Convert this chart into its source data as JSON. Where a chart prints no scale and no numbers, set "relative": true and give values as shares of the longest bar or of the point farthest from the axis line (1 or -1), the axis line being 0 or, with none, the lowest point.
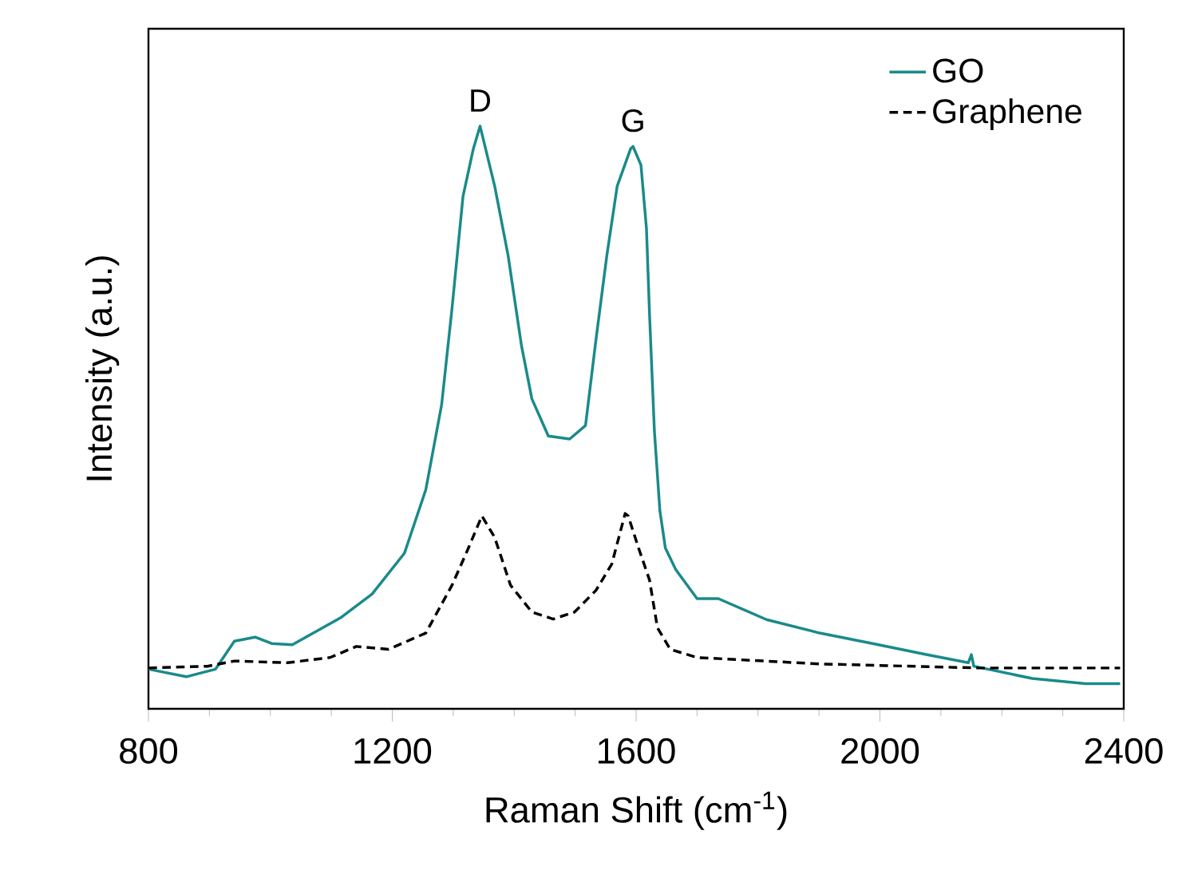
{
  "chart_data": {
    "type": "line",
    "relative": true,
    "xlabel": "Raman Shift (cm$^{-1}$)",
    "ylabel": "Intensity (a.u.)",
    "xlim": [
      800,
      2400
    ],
    "xticks": [
      800,
      1200,
      1600,
      2000,
      2400
    ],
    "legend": "top right",
    "grid": false,
    "annotations": [
      {
        "text": "D",
        "x": 1344,
        "y": 1.0
      },
      {
        "text": "G",
        "x": 1595,
        "y": 0.965
      }
    ],
    "series": [
      {
        "name": "GO",
        "color": "#1a8a8a",
        "line_style": "solid",
        "x": [
          800,
          862,
          910,
          941,
          975,
          1002,
          1036,
          1115,
          1167,
          1220,
          1255,
          1281,
          1298,
          1316,
          1333,
          1344,
          1368,
          1390,
          1412,
          1429,
          1456,
          1491,
          1517,
          1534,
          1552,
          1569,
          1591,
          1595,
          1608,
          1617,
          1622,
          1630,
          1639,
          1648,
          1665,
          1700,
          1735,
          1814,
          1901,
          1988,
          2076,
          2145,
          2150,
          2154,
          2250,
          2337,
          2394
        ],
        "values": [
          0.068,
          0.055,
          0.068,
          0.116,
          0.123,
          0.112,
          0.11,
          0.156,
          0.197,
          0.267,
          0.376,
          0.522,
          0.687,
          0.879,
          0.961,
          1.0,
          0.897,
          0.778,
          0.623,
          0.532,
          0.468,
          0.463,
          0.486,
          0.632,
          0.778,
          0.897,
          0.961,
          0.965,
          0.933,
          0.824,
          0.678,
          0.477,
          0.34,
          0.276,
          0.239,
          0.189,
          0.189,
          0.153,
          0.13,
          0.112,
          0.093,
          0.079,
          0.093,
          0.073,
          0.052,
          0.043,
          0.043
        ]
      },
      {
        "name": "Graphene",
        "color": "#000000",
        "line_style": "dashed",
        "x": [
          800,
          897,
          941,
          1028,
          1098,
          1141,
          1194,
          1255,
          1298,
          1325,
          1347,
          1368,
          1394,
          1429,
          1464,
          1499,
          1534,
          1560,
          1582,
          1587,
          1604,
          1622,
          1635,
          1656,
          1700,
          1901,
          2163,
          2394
        ],
        "values": [
          0.07,
          0.073,
          0.082,
          0.079,
          0.088,
          0.107,
          0.102,
          0.13,
          0.212,
          0.276,
          0.331,
          0.294,
          0.212,
          0.166,
          0.154,
          0.166,
          0.203,
          0.248,
          0.335,
          0.331,
          0.276,
          0.221,
          0.139,
          0.102,
          0.088,
          0.077,
          0.07,
          0.07
        ]
      }
    ]
  }
}
